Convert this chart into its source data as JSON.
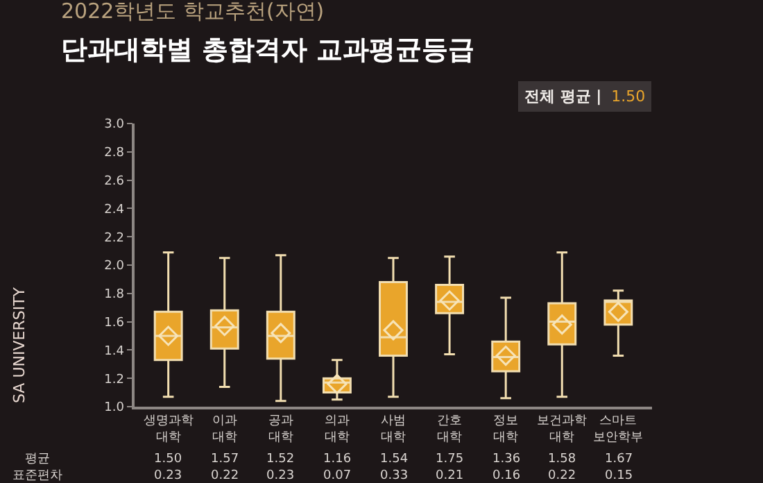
{
  "chart_data": {
    "type": "box",
    "subtitle": "2022학년도 학교추천(자연)",
    "title": "단과대학별 총합격자 교과평균등급",
    "categories": [
      "생명과학\n대학",
      "이과\n대학",
      "공과\n대학",
      "의과\n대학",
      "사범\n대학",
      "간호\n대학",
      "정보\n대학",
      "보건과학\n대학",
      "스마트\n보안학부"
    ],
    "color": "#e9a52b",
    "boxes": [
      {
        "low": 1.07,
        "q1": 1.33,
        "median": 1.5,
        "q3": 1.67,
        "high": 2.09,
        "mean": 1.5
      },
      {
        "low": 1.14,
        "q1": 1.41,
        "median": 1.56,
        "q3": 1.68,
        "high": 2.05,
        "mean": 1.57
      },
      {
        "low": 1.04,
        "q1": 1.34,
        "median": 1.5,
        "q3": 1.67,
        "high": 2.07,
        "mean": 1.52
      },
      {
        "low": 1.05,
        "q1": 1.1,
        "median": 1.17,
        "q3": 1.2,
        "high": 1.33,
        "mean": 1.16
      },
      {
        "low": 1.07,
        "q1": 1.36,
        "median": 1.49,
        "q3": 1.88,
        "high": 2.05,
        "mean": 1.54
      },
      {
        "low": 1.37,
        "q1": 1.66,
        "median": 1.74,
        "q3": 1.86,
        "high": 2.06,
        "mean": 1.75
      },
      {
        "low": 1.06,
        "q1": 1.25,
        "median": 1.35,
        "q3": 1.46,
        "high": 1.77,
        "mean": 1.36
      },
      {
        "low": 1.07,
        "q1": 1.44,
        "median": 1.6,
        "q3": 1.73,
        "high": 2.09,
        "mean": 1.58
      },
      {
        "low": 1.36,
        "q1": 1.58,
        "median": 1.74,
        "q3": 1.75,
        "high": 1.82,
        "mean": 1.67
      }
    ],
    "ylim": [
      1.0,
      3.0
    ],
    "yticks": [
      {
        "value": 1,
        "label": "1.0"
      },
      {
        "value": 1.2,
        "label": "1.2"
      },
      {
        "value": 1.4,
        "label": "1.4"
      },
      {
        "value": 1.6,
        "label": "1.6"
      },
      {
        "value": 1.8,
        "label": "1.8"
      },
      {
        "value": 2,
        "label": "2.0"
      },
      {
        "value": 2.2,
        "label": "2.2"
      },
      {
        "value": 2.4,
        "label": "2.4"
      },
      {
        "value": 2.6,
        "label": "2.6"
      },
      {
        "value": 2.8,
        "label": "2.8"
      },
      {
        "value": 3,
        "label": "3.0"
      }
    ],
    "grid": false,
    "marker": "diamond",
    "annotations": [
      "전체 평균 | 1.50",
      "SA UNIVERSITY",
      "평균",
      "표준편차",
      "1.50",
      "1.57",
      "1.52",
      "1.16",
      "1.54",
      "1.75",
      "1.36",
      "1.58",
      "1.67",
      "0.23",
      "0.22",
      "0.23",
      "0.07",
      "0.33",
      "0.21",
      "0.16",
      "0.22",
      "0.15"
    ]
  }
}
